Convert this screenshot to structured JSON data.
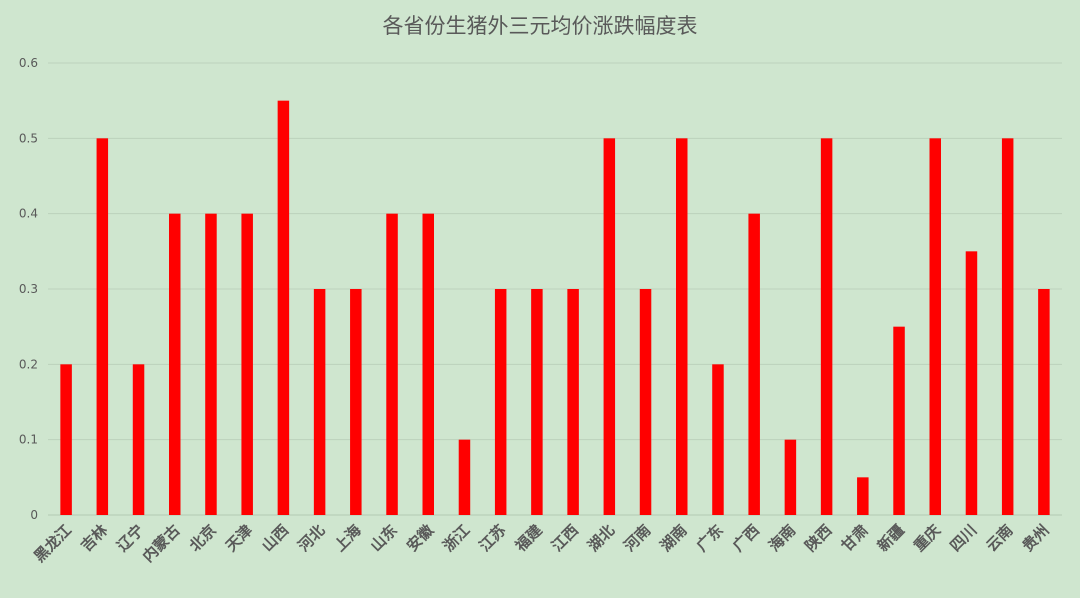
{
  "chart_data": {
    "type": "bar",
    "title": "各省份生猪外三元均价涨跌幅度表",
    "xlabel": "",
    "ylabel": "",
    "ylim": [
      0,
      0.6
    ],
    "yticks": [
      "0",
      "0.1",
      "0.2",
      "0.3",
      "0.4",
      "0.5",
      "0.6"
    ],
    "grid": true,
    "legend": "none",
    "colors": {
      "background": "#cfe6cf",
      "bar": "#ff0000",
      "grid": "#bcd2bc",
      "text": "#595959"
    },
    "categories": [
      "黑龙江",
      "吉林",
      "辽宁",
      "内蒙古",
      "北京",
      "天津",
      "山西",
      "河北",
      "上海",
      "山东",
      "安徽",
      "浙江",
      "江苏",
      "福建",
      "江西",
      "湖北",
      "河南",
      "湖南",
      "广东",
      "广西",
      "海南",
      "陕西",
      "甘肃",
      "新疆",
      "重庆",
      "四川",
      "云南",
      "贵州"
    ],
    "values": [
      0.2,
      0.5,
      0.2,
      0.4,
      0.4,
      0.4,
      0.55,
      0.3,
      0.3,
      0.4,
      0.4,
      0.1,
      0.3,
      0.3,
      0.3,
      0.5,
      0.3,
      0.5,
      0.2,
      0.4,
      0.1,
      0.5,
      0.05,
      0.25,
      0.5,
      0.35,
      0.5,
      0.3
    ]
  }
}
